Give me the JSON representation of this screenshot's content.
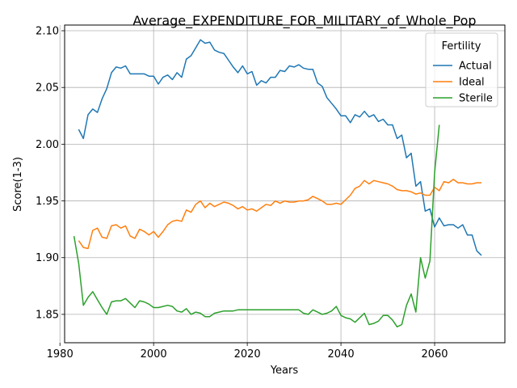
{
  "chart_data": {
    "type": "line",
    "title": "Average_EXPENDITURE_FOR_MILITARY_of_Whole_Pop",
    "xlabel": "Years",
    "ylabel": "Score(1-3)",
    "xlim": [
      1981,
      2075
    ],
    "ylim": [
      1.825,
      2.105
    ],
    "xticks": [
      1980,
      2000,
      2020,
      2040,
      2060
    ],
    "yticks": [
      1.85,
      1.9,
      1.95,
      2.0,
      2.05,
      2.1
    ],
    "ytick_labels": [
      "1.85",
      "1.90",
      "1.95",
      "2.00",
      "2.05",
      "2.10"
    ],
    "grid": true,
    "legend": {
      "title": "Fertility",
      "placement": "upper-right"
    },
    "series": [
      {
        "name": "Actual",
        "color": "#1f77b4",
        "x": [
          1984,
          1985,
          1986,
          1987,
          1988,
          1989,
          1990,
          1991,
          1992,
          1993,
          1994,
          1995,
          1996,
          1997,
          1998,
          1999,
          2000,
          2001,
          2002,
          2003,
          2004,
          2005,
          2006,
          2007,
          2008,
          2009,
          2010,
          2011,
          2012,
          2013,
          2014,
          2015,
          2016,
          2017,
          2018,
          2019,
          2020,
          2021,
          2022,
          2023,
          2024,
          2025,
          2026,
          2027,
          2028,
          2029,
          2030,
          2031,
          2032,
          2033,
          2034,
          2035,
          2036,
          2037,
          2038,
          2039,
          2040,
          2041,
          2042,
          2043,
          2044,
          2045,
          2046,
          2047,
          2048,
          2049,
          2050,
          2051,
          2052,
          2053,
          2054,
          2055,
          2056,
          2057,
          2058,
          2059,
          2060,
          2061,
          2062,
          2063,
          2064,
          2065,
          2066,
          2067,
          2068,
          2069,
          2070
        ],
        "values": [
          2.013,
          2.005,
          2.026,
          2.031,
          2.028,
          2.04,
          2.049,
          2.063,
          2.068,
          2.067,
          2.069,
          2.062,
          2.062,
          2.062,
          2.062,
          2.06,
          2.06,
          2.053,
          2.059,
          2.061,
          2.057,
          2.063,
          2.059,
          2.075,
          2.078,
          2.085,
          2.092,
          2.089,
          2.09,
          2.083,
          2.081,
          2.08,
          2.074,
          2.068,
          2.063,
          2.069,
          2.062,
          2.064,
          2.052,
          2.056,
          2.054,
          2.059,
          2.059,
          2.065,
          2.064,
          2.069,
          2.068,
          2.07,
          2.067,
          2.066,
          2.066,
          2.054,
          2.051,
          2.041,
          2.036,
          2.031,
          2.025,
          2.025,
          2.019,
          2.026,
          2.024,
          2.029,
          2.024,
          2.026,
          2.02,
          2.022,
          2.017,
          2.017,
          2.005,
          2.008,
          1.988,
          1.992,
          1.963,
          1.967,
          1.941,
          1.943,
          1.927,
          1.935,
          1.928,
          1.929,
          1.929,
          1.926,
          1.929,
          1.92,
          1.92,
          1.906,
          1.902
        ]
      },
      {
        "name": "Ideal",
        "color": "#ff7f0e",
        "x": [
          1984,
          1985,
          1986,
          1987,
          1988,
          1989,
          1990,
          1991,
          1992,
          1993,
          1994,
          1995,
          1996,
          1997,
          1998,
          1999,
          2000,
          2001,
          2002,
          2003,
          2004,
          2005,
          2006,
          2007,
          2008,
          2009,
          2010,
          2011,
          2012,
          2013,
          2014,
          2015,
          2016,
          2017,
          2018,
          2019,
          2020,
          2021,
          2022,
          2023,
          2024,
          2025,
          2026,
          2027,
          2028,
          2029,
          2030,
          2031,
          2032,
          2033,
          2034,
          2035,
          2036,
          2037,
          2038,
          2039,
          2040,
          2041,
          2042,
          2043,
          2044,
          2045,
          2046,
          2047,
          2048,
          2049,
          2050,
          2051,
          2052,
          2053,
          2054,
          2055,
          2056,
          2057,
          2058,
          2059,
          2060,
          2061,
          2062,
          2063,
          2064,
          2065,
          2066,
          2067,
          2068,
          2069,
          2070
        ],
        "values": [
          1.915,
          1.909,
          1.908,
          1.924,
          1.926,
          1.918,
          1.917,
          1.928,
          1.929,
          1.926,
          1.928,
          1.919,
          1.917,
          1.925,
          1.923,
          1.92,
          1.923,
          1.918,
          1.923,
          1.929,
          1.932,
          1.933,
          1.932,
          1.942,
          1.94,
          1.947,
          1.95,
          1.944,
          1.948,
          1.945,
          1.947,
          1.949,
          1.948,
          1.946,
          1.943,
          1.945,
          1.942,
          1.943,
          1.941,
          1.944,
          1.947,
          1.946,
          1.95,
          1.948,
          1.95,
          1.949,
          1.949,
          1.95,
          1.95,
          1.951,
          1.954,
          1.952,
          1.95,
          1.947,
          1.947,
          1.948,
          1.947,
          1.951,
          1.955,
          1.961,
          1.963,
          1.968,
          1.965,
          1.968,
          1.967,
          1.966,
          1.965,
          1.963,
          1.96,
          1.959,
          1.959,
          1.958,
          1.956,
          1.957,
          1.955,
          1.955,
          1.962,
          1.959,
          1.967,
          1.966,
          1.969,
          1.966,
          1.966,
          1.965,
          1.965,
          1.966,
          1.966
        ]
      },
      {
        "name": "Sterile",
        "color": "#2ca02c",
        "x": [
          1983,
          1984,
          1985,
          1986,
          1987,
          1988,
          1989,
          1990,
          1991,
          1992,
          1993,
          1994,
          1995,
          1996,
          1997,
          1998,
          1999,
          2000,
          2001,
          2002,
          2003,
          2004,
          2005,
          2006,
          2007,
          2008,
          2009,
          2010,
          2011,
          2012,
          2013,
          2014,
          2015,
          2016,
          2017,
          2018,
          2019,
          2020,
          2021,
          2022,
          2023,
          2024,
          2025,
          2026,
          2027,
          2028,
          2029,
          2030,
          2031,
          2032,
          2033,
          2034,
          2035,
          2036,
          2037,
          2038,
          2039,
          2040,
          2041,
          2042,
          2043,
          2044,
          2045,
          2046,
          2047,
          2048,
          2049,
          2050,
          2051,
          2052,
          2053,
          2054,
          2055,
          2056,
          2057,
          2058,
          2059,
          2060,
          2061
        ],
        "values": [
          1.919,
          1.895,
          1.858,
          1.865,
          1.87,
          1.863,
          1.856,
          1.85,
          1.861,
          1.862,
          1.862,
          1.864,
          1.86,
          1.856,
          1.862,
          1.861,
          1.859,
          1.856,
          1.856,
          1.857,
          1.858,
          1.857,
          1.853,
          1.852,
          1.855,
          1.85,
          1.852,
          1.851,
          1.848,
          1.848,
          1.851,
          1.852,
          1.853,
          1.853,
          1.853,
          1.854,
          1.854,
          1.854,
          1.854,
          1.854,
          1.854,
          1.854,
          1.854,
          1.854,
          1.854,
          1.854,
          1.854,
          1.854,
          1.854,
          1.851,
          1.85,
          1.854,
          1.852,
          1.85,
          1.851,
          1.853,
          1.857,
          1.849,
          1.847,
          1.846,
          1.843,
          1.847,
          1.851,
          1.841,
          1.842,
          1.844,
          1.849,
          1.849,
          1.845,
          1.839,
          1.841,
          1.858,
          1.868,
          1.852,
          1.9,
          1.882,
          1.897,
          1.975,
          2.017
        ]
      }
    ]
  }
}
